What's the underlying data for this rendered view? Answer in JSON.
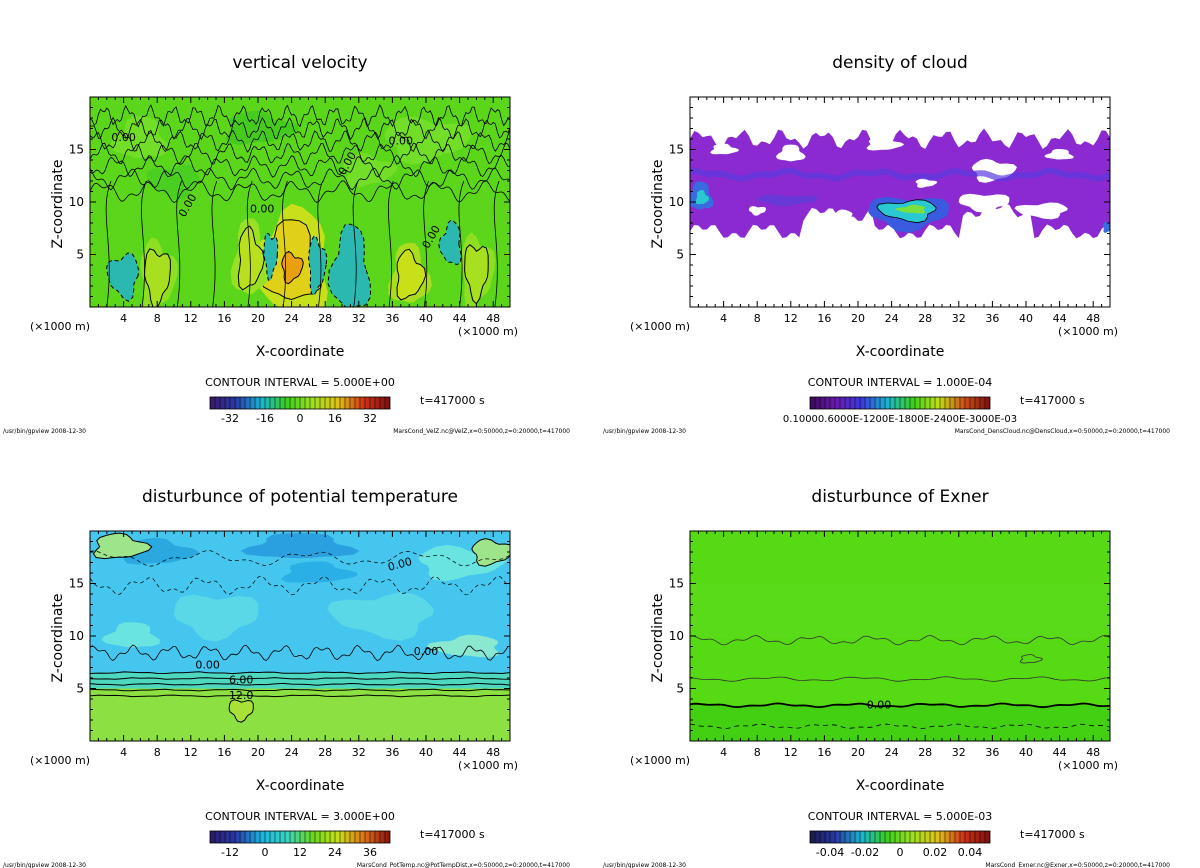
{
  "panels": [
    {
      "id": "velz",
      "title": "vertical velocity",
      "xlabel": "X-coordinate",
      "ylabel": "Z-coordinate",
      "xunit": "(×1000 m)",
      "xticks": [
        4,
        8,
        12,
        16,
        20,
        24,
        28,
        32,
        36,
        40,
        44,
        48
      ],
      "yticks": [
        5,
        10,
        15
      ],
      "contour_interval": "CONTOUR INTERVAL = 5.000E+00",
      "time": "t=417000 s",
      "colorbar_labels": [
        "-32",
        "-16",
        "0",
        "16",
        "32"
      ],
      "contour_labels": [
        "0.00",
        "0.00",
        "0.00",
        "0.00",
        "0.00",
        "0.00"
      ],
      "footer_left": "/usr/bin/gpview  2008-12-30",
      "footer_right": "MarsCond_VelZ.nc@VelZ,x=0:50000,z=0:20000,t=417000"
    },
    {
      "id": "cloud",
      "title": "density of cloud",
      "xlabel": "X-coordinate",
      "ylabel": "Z-coordinate",
      "xunit": "(×1000 m)",
      "xticks": [
        4,
        8,
        12,
        16,
        20,
        24,
        28,
        32,
        36,
        40,
        44,
        48
      ],
      "yticks": [
        5,
        10,
        15
      ],
      "contour_interval": "CONTOUR INTERVAL = 1.000E-04",
      "time": "t=417000 s",
      "colorbar_labels": [
        "0.10000.6000E-1200E-1800E-2400E-3000E-03"
      ],
      "contour_labels": [],
      "footer_left": "/usr/bin/gpview  2008-12-30",
      "footer_right": "MarsCond_DensCloud.nc@DensCloud,x=0:50000,z=0:20000,t=417000"
    },
    {
      "id": "pottemp",
      "title": "disturbunce of potential temperature",
      "xlabel": "X-coordinate",
      "ylabel": "Z-coordinate",
      "xunit": "(×1000 m)",
      "xticks": [
        4,
        8,
        12,
        16,
        20,
        24,
        28,
        32,
        36,
        40,
        44,
        48
      ],
      "yticks": [
        5,
        10,
        15
      ],
      "contour_interval": "CONTOUR INTERVAL = 3.000E+00",
      "time": "t=417000 s",
      "colorbar_labels": [
        "-12",
        "0",
        "12",
        "24",
        "36"
      ],
      "contour_labels": [
        "0.00",
        "0.00",
        "0.00",
        "6.00",
        "12.0"
      ],
      "footer_left": "/usr/bin/gpview  2008-12-30",
      "footer_right": "MarsCond_PotTemp.nc@PotTempDist,x=0:50000,z=0:20000,t=417000"
    },
    {
      "id": "exner",
      "title": "disturbunce of Exner",
      "xlabel": "X-coordinate",
      "ylabel": "Z-coordinate",
      "xunit": "(×1000 m)",
      "xticks": [
        4,
        8,
        12,
        16,
        20,
        24,
        28,
        32,
        36,
        40,
        44,
        48
      ],
      "yticks": [
        5,
        10,
        15
      ],
      "contour_interval": "CONTOUR INTERVAL = 5.000E-03",
      "time": "t=417000 s",
      "colorbar_labels": [
        "-0.04",
        "-0.02",
        "0",
        "0.02",
        "0.04"
      ],
      "contour_labels": [
        "0.00"
      ],
      "footer_left": "/usr/bin/gpview  2008-12-30",
      "footer_right": "MarsCond_Exner.nc@Exner,x=0:50000,z=0:20000,t=417000"
    }
  ],
  "chart_data": [
    {
      "type": "heatmap",
      "title": "vertical velocity",
      "xlabel": "X-coordinate",
      "ylabel": "Z-coordinate",
      "xlim": [
        0,
        50
      ],
      "ylim": [
        0,
        20
      ],
      "colorbar_range": [
        -40,
        40
      ],
      "colors": {
        "low": "#3a2a8a",
        "mid": "#3cc81e",
        "high": "#c81e1e"
      },
      "description_values": {
        "max_updraft_x": 24,
        "max_updraft_z": 4
      }
    },
    {
      "type": "heatmap",
      "title": "density of cloud",
      "xlabel": "X-coordinate",
      "ylabel": "Z-coordinate",
      "xlim": [
        0,
        50
      ],
      "ylim": [
        0,
        20
      ],
      "cloud_layer_z": [
        7,
        16
      ],
      "colors": {
        "base": "#8a2ad0",
        "mid": "#3a5ae0",
        "high": "#2ac8d0"
      }
    },
    {
      "type": "heatmap",
      "title": "disturbunce of potential temperature",
      "xlabel": "X-coordinate",
      "ylabel": "Z-coordinate",
      "xlim": [
        0,
        50
      ],
      "ylim": [
        0,
        20
      ],
      "colorbar_range": [
        -18,
        42
      ],
      "colors": {
        "low": "#3cbcec",
        "mid": "#6ae4e0",
        "high": "#8ce042"
      }
    },
    {
      "type": "heatmap",
      "title": "disturbunce of Exner",
      "xlabel": "X-coordinate",
      "ylabel": "Z-coordinate",
      "xlim": [
        0,
        50
      ],
      "ylim": [
        0,
        20
      ],
      "colorbar_range": [
        -0.05,
        0.05
      ],
      "colors": {
        "field": "#58dc14",
        "low": "#40d010"
      }
    }
  ]
}
